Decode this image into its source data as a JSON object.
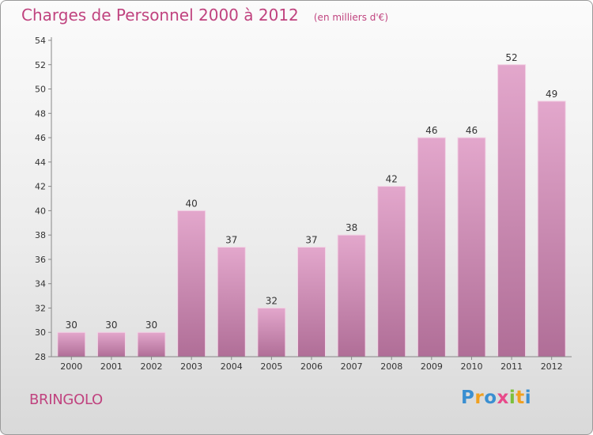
{
  "chart_data": {
    "type": "bar",
    "title": "Charges de Personnel 2000 à 2012",
    "subtitle": "(en milliers d'€)",
    "categories": [
      "2000",
      "2001",
      "2002",
      "2003",
      "2004",
      "2005",
      "2006",
      "2007",
      "2008",
      "2009",
      "2010",
      "2011",
      "2012"
    ],
    "values": [
      30,
      30,
      30,
      40,
      37,
      32,
      37,
      38,
      42,
      46,
      46,
      52,
      49
    ],
    "ylim": [
      28,
      54
    ],
    "yticks": [
      28,
      30,
      32,
      34,
      36,
      38,
      40,
      42,
      44,
      46,
      48,
      50,
      52,
      54
    ],
    "grid": false,
    "colors": {
      "bar_top": "#e3a7cc",
      "bar_bottom": "#b06e97",
      "title": "#c0437f",
      "axis": "#888888"
    }
  },
  "commune": "BRINGOLO",
  "logo": {
    "letters": [
      "P",
      "r",
      "o",
      "x",
      "i",
      "t",
      "i"
    ],
    "colors": [
      "#3a8fd1",
      "#f0a020",
      "#3a8fd1",
      "#e84a8a",
      "#7cbf3b",
      "#f0a020",
      "#3a8fd1"
    ]
  }
}
